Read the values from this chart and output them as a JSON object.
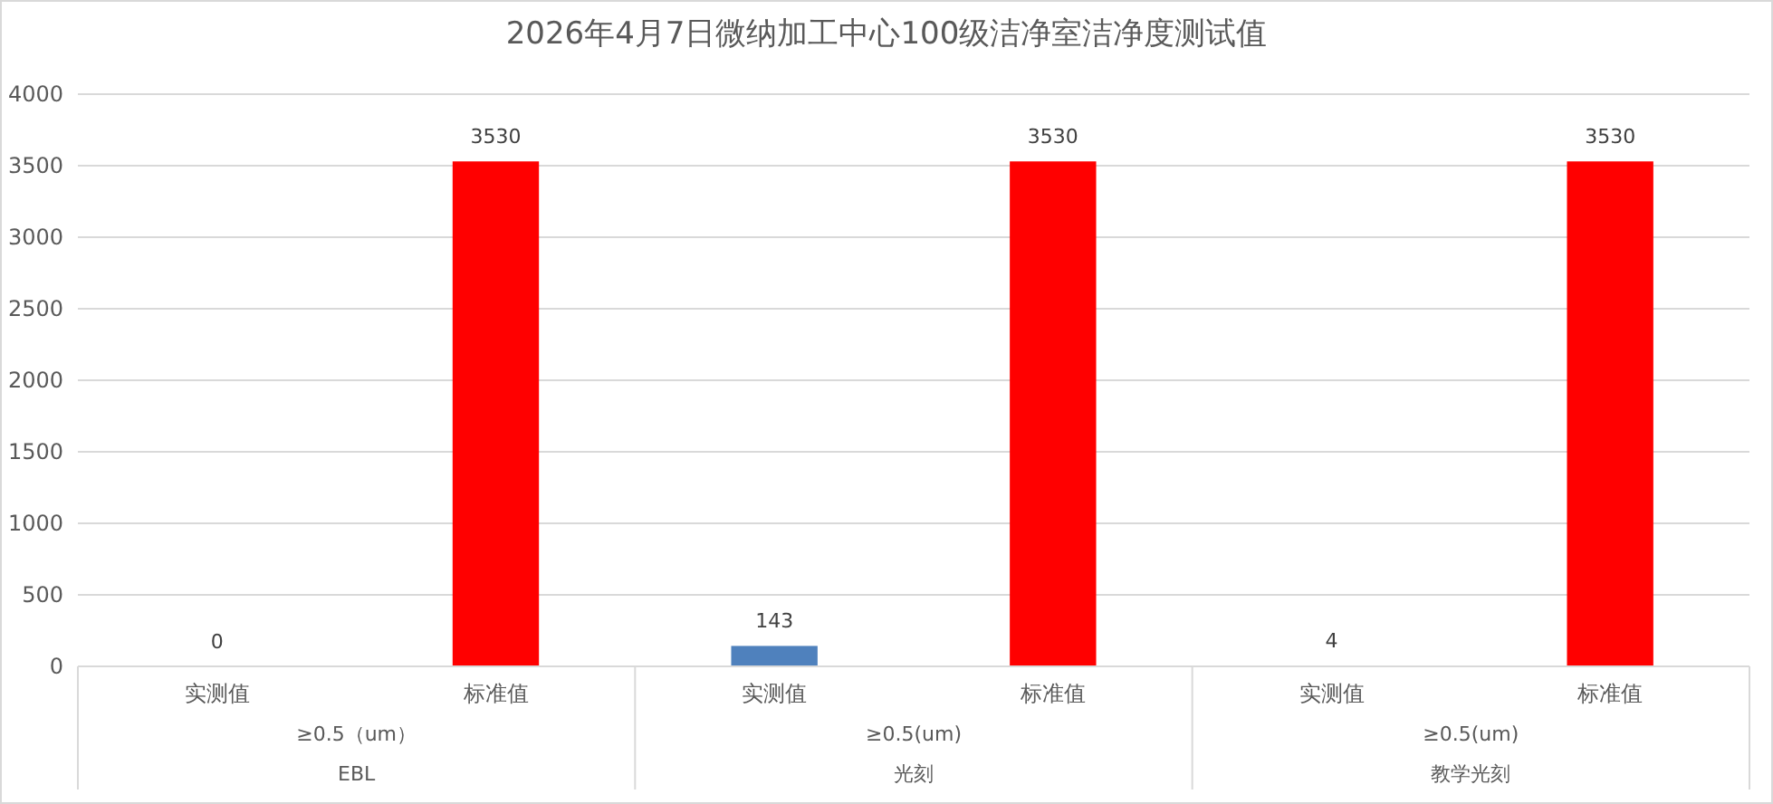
{
  "chart_data": {
    "type": "bar",
    "title": "2026年4月7日微纳加工中心100级洁净室洁净度测试值",
    "categories": [
      "实测值",
      "标准值",
      "实测值",
      "标准值",
      "实测值",
      "标准值"
    ],
    "values": [
      0,
      3530,
      143,
      3530,
      4,
      3530
    ],
    "colors": [
      "#4f81bd",
      "#ff0000",
      "#4f81bd",
      "#ff0000",
      "#4f81bd",
      "#ff0000"
    ],
    "ylim": [
      0,
      4000
    ],
    "yticks": [
      0,
      500,
      1000,
      1500,
      2000,
      2500,
      3000,
      3500,
      4000
    ],
    "grid": "y",
    "data_labels": true,
    "annotations": [
      "≥0.5（um）",
      "≥0.5(um)",
      "≥0.5(um)",
      "EBL",
      "光刻",
      "教学光刻"
    ]
  }
}
